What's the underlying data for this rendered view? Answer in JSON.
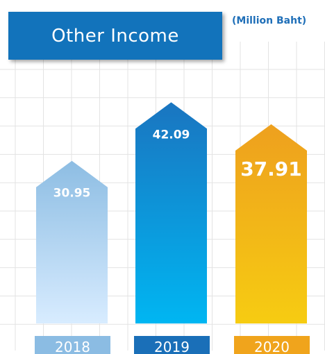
{
  "title": "Other Income",
  "unit": "(Million Baht)",
  "chart_data": {
    "type": "bar",
    "title": "Other Income",
    "ylabel": "(Million Baht)",
    "categories": [
      "2018",
      "2019",
      "2020"
    ],
    "values": [
      30.95,
      42.09,
      37.91
    ],
    "value_labels": [
      "30.95",
      "42.09",
      "37.91"
    ],
    "ylim": [
      0,
      45
    ],
    "grid": true,
    "legend": "none"
  },
  "colors": {
    "title_bg": "#1273bb",
    "unit_text": "#1f6fb8",
    "grid": "#e3e3e3",
    "bar_2018_top": "#8dbde3",
    "bar_2018_bottom": "#d8ecff",
    "bar_2019_top": "#1a75c0",
    "bar_2019_bottom": "#00b6f2",
    "bar_2020_top": "#eea01e",
    "bar_2020_bottom": "#f6cc12",
    "tab_2018": "#8bbce3",
    "tab_2019": "#1a6fb8",
    "tab_2020": "#f0a41c"
  }
}
